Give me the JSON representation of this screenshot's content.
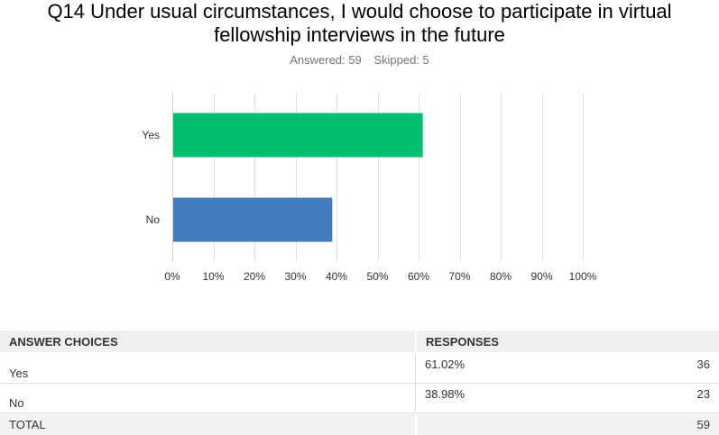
{
  "title_lines": [
    "Q14 Under usual circumstances, I would choose to participate in virtual",
    "fellowship interviews in the future"
  ],
  "stats": {
    "answered": "Answered: 59",
    "skipped": "Skipped: 5"
  },
  "chart_data": {
    "type": "bar",
    "orientation": "horizontal",
    "categories": [
      "Yes",
      "No"
    ],
    "values": [
      61.02,
      38.98
    ],
    "colors": [
      "#00bf6f",
      "#437bbf"
    ],
    "xlim": [
      0,
      100
    ],
    "xticks": [
      "0%",
      "10%",
      "20%",
      "30%",
      "40%",
      "50%",
      "60%",
      "70%",
      "80%",
      "90%",
      "100%"
    ],
    "grid": true
  },
  "table": {
    "headers": [
      "ANSWER CHOICES",
      "RESPONSES"
    ],
    "rows": [
      {
        "choice": "Yes",
        "percent": "61.02%",
        "count": "36"
      },
      {
        "choice": "No",
        "percent": "38.98%",
        "count": "23"
      }
    ],
    "total": {
      "label": "TOTAL",
      "count": "59"
    }
  }
}
